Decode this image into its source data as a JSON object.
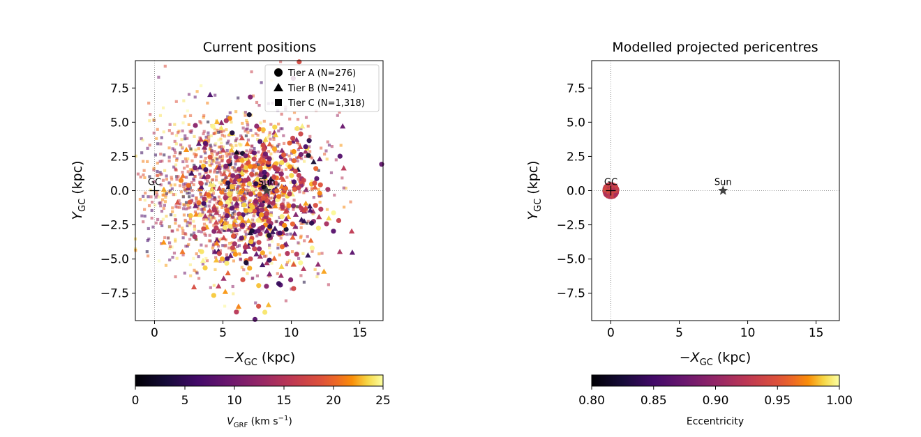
{
  "chart_data": [
    {
      "type": "scatter",
      "title": "Current positions",
      "xlabel": "−X",
      "xlabel_sub": "GC",
      "xlabel_unit": " (kpc)",
      "ylabel": "Y",
      "ylabel_sub": "GC",
      "ylabel_unit": " (kpc)",
      "xlim": [
        -1.4,
        16.7
      ],
      "ylim": [
        -9.5,
        9.5
      ],
      "xticks": [
        0,
        5,
        10,
        15
      ],
      "yticks": [
        -7.5,
        -5.0,
        -2.5,
        0.0,
        2.5,
        5.0,
        7.5
      ],
      "ytick_labels": [
        "−7.5",
        "−5.0",
        "−2.5",
        "0.0",
        "2.5",
        "5.0",
        "7.5"
      ],
      "reference_lines": {
        "x": 0,
        "y": 0,
        "style": "dotted"
      },
      "markers": [
        {
          "label": "GC",
          "x": 0,
          "y": 0,
          "symbol": "plus"
        },
        {
          "label": "Sun",
          "x": 8.2,
          "y": 0,
          "symbol": "star"
        }
      ],
      "legend": {
        "placement": "top-right",
        "entries": [
          {
            "label": "Tier A (N=276)",
            "symbol": "circle"
          },
          {
            "label": "Tier B (N=241)",
            "symbol": "triangle"
          },
          {
            "label": "Tier C (N=1,318)",
            "symbol": "square"
          }
        ]
      },
      "colorbar": {
        "cmap": "inferno",
        "range": [
          0,
          25
        ],
        "ticks": [
          0,
          5,
          10,
          15,
          20,
          25
        ],
        "label": "V",
        "label_sub": "GRF",
        "label_unit": " (km s",
        "label_sup": "−1",
        "label_close": ")"
      },
      "series_summary": [
        {
          "name": "Tier A (N=276)",
          "marker": "circle",
          "count": 276,
          "x_center": 7.8,
          "y_center": -0.5,
          "x_spread": 2.3,
          "y_spread": 3.0
        },
        {
          "name": "Tier B (N=241)",
          "marker": "triangle",
          "count": 241,
          "x_center": 7.3,
          "y_center": -0.5,
          "x_spread": 2.6,
          "y_spread": 3.0
        },
        {
          "name": "Tier C (N=1,318)",
          "marker": "square",
          "count": 1318,
          "x_center": 5.2,
          "y_center": 0.0,
          "x_spread": 3.3,
          "y_spread": 2.9
        }
      ]
    },
    {
      "type": "scatter",
      "title": "Modelled projected pericentres",
      "xlabel": "−X",
      "xlabel_sub": "GC",
      "xlabel_unit": " (kpc)",
      "ylabel": "Y",
      "ylabel_sub": "GC",
      "ylabel_unit": " (kpc)",
      "xlim": [
        -1.4,
        16.7
      ],
      "ylim": [
        -9.5,
        9.5
      ],
      "xticks": [
        0,
        5,
        10,
        15
      ],
      "yticks": [
        -7.5,
        -5.0,
        -2.5,
        0.0,
        2.5,
        5.0,
        7.5
      ],
      "ytick_labels": [
        "−7.5",
        "−5.0",
        "−2.5",
        "0.0",
        "2.5",
        "5.0",
        "7.5"
      ],
      "reference_lines": {
        "x": 0,
        "y": 0,
        "style": "dotted"
      },
      "markers": [
        {
          "label": "GC",
          "x": 0,
          "y": 0,
          "symbol": "plus"
        },
        {
          "label": "Sun",
          "x": 8.2,
          "y": 0,
          "symbol": "star"
        }
      ],
      "colorbar": {
        "cmap": "inferno",
        "range": [
          0.8,
          1.0
        ],
        "ticks": [
          0.8,
          0.85,
          0.9,
          0.95,
          1.0
        ],
        "tick_labels": [
          "0.80",
          "0.85",
          "0.90",
          "0.95",
          "1.00"
        ],
        "label": "Eccentricity"
      },
      "series_summary": [
        {
          "name": "pericentres",
          "marker": "mixed",
          "count": 1835,
          "x_center": 0.0,
          "y_center": 0.0,
          "radius": 0.5,
          "value": 0.93
        }
      ]
    }
  ]
}
